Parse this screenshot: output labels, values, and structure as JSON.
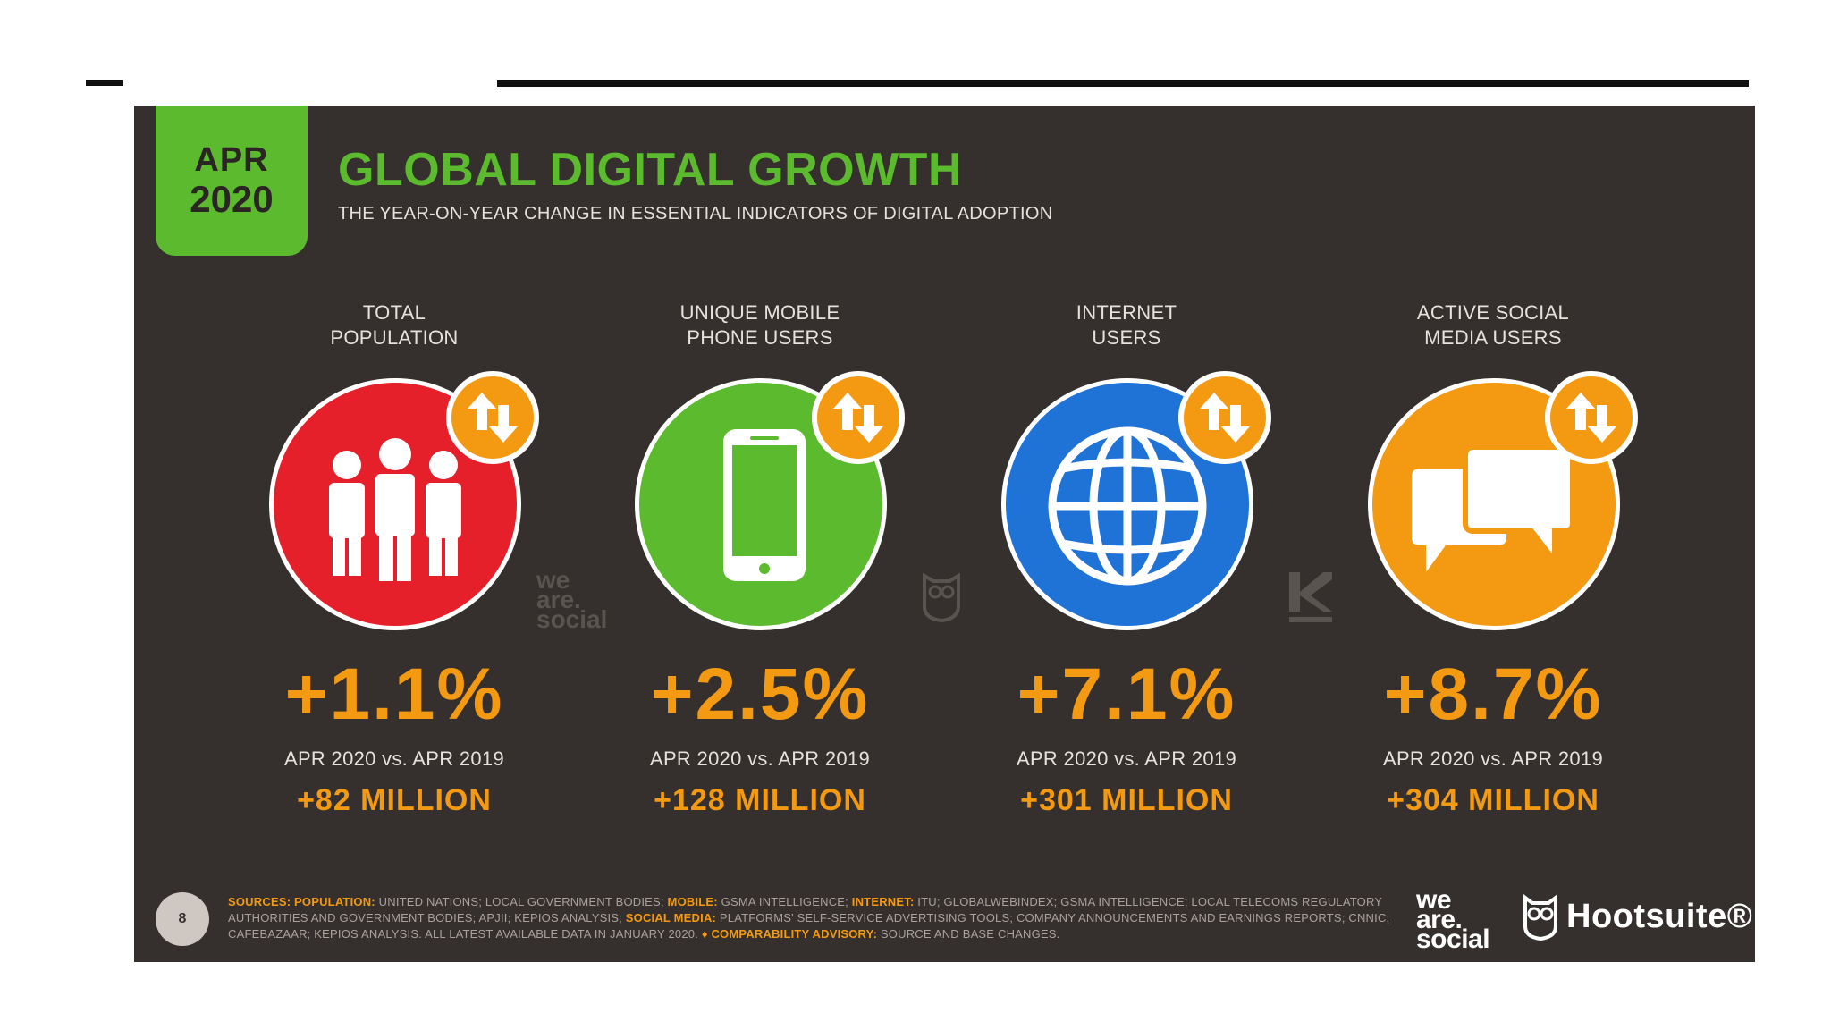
{
  "header": {
    "date_month": "APR",
    "date_year": "2020",
    "title": "GLOBAL DIGITAL GROWTH",
    "subtitle": "THE YEAR-ON-YEAR CHANGE IN ESSENTIAL INDICATORS OF DIGITAL ADOPTION"
  },
  "colors": {
    "background": "#35302d",
    "brand_green": "#5cba2f",
    "accent_orange": "#f39a12",
    "population_red": "#e5202b",
    "mobile_green": "#5cba2f",
    "internet_blue": "#1f73d6",
    "social_orange": "#f39a12"
  },
  "indicators": [
    {
      "label_line1": "TOTAL",
      "label_line2": "POPULATION",
      "icon": "people-icon",
      "change_pct": "+1.1%",
      "comparison": "APR 2020 vs. APR 2019",
      "absolute_change": "+82 MILLION"
    },
    {
      "label_line1": "UNIQUE MOBILE",
      "label_line2": "PHONE USERS",
      "icon": "mobile-phone-icon",
      "change_pct": "+2.5%",
      "comparison": "APR 2020 vs. APR 2019",
      "absolute_change": "+128 MILLION"
    },
    {
      "label_line1": "INTERNET",
      "label_line2": "USERS",
      "icon": "globe-icon",
      "change_pct": "+7.1%",
      "comparison": "APR 2020 vs. APR 2019",
      "absolute_change": "+301 MILLION"
    },
    {
      "label_line1": "ACTIVE SOCIAL",
      "label_line2": "MEDIA USERS",
      "icon": "speech-bubbles-icon",
      "change_pct": "+8.7%",
      "comparison": "APR 2020 vs. APR 2019",
      "absolute_change": "+304 MILLION"
    }
  ],
  "footer": {
    "page_number": "8",
    "sources_label": "SOURCES:",
    "src_population_label": "POPULATION:",
    "src_population": "UNITED NATIONS; LOCAL GOVERNMENT BODIES;",
    "src_mobile_label": "MOBILE:",
    "src_mobile": "GSMA INTELLIGENCE;",
    "src_internet_label": "INTERNET:",
    "src_internet": "ITU; GLOBALWEBINDEX; GSMA INTELLIGENCE; LOCAL TELECOMS REGULATORY AUTHORITIES AND GOVERNMENT BODIES; APJII; KEPIOS ANALYSIS;",
    "src_social_label": "SOCIAL MEDIA:",
    "src_social": "PLATFORMS' SELF-SERVICE ADVERTISING TOOLS; COMPANY ANNOUNCEMENTS AND EARNINGS REPORTS; CNNIC; CAFEBAZAAR; KEPIOS ANALYSIS. ALL LATEST AVAILABLE DATA IN JANUARY 2020.",
    "advisory_label": "♦ COMPARABILITY ADVISORY:",
    "advisory": "SOURCE AND BASE CHANGES.",
    "brand_we": "we",
    "brand_are": "are.",
    "brand_social": "social",
    "brand_hootsuite": "Hootsuite®"
  }
}
